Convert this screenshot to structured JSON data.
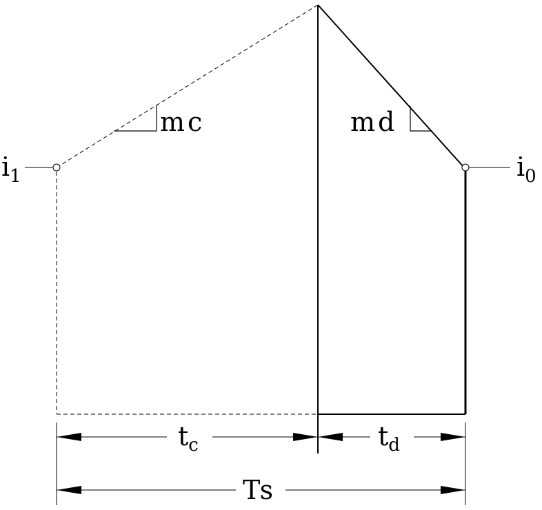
{
  "labels": {
    "i1_main": "i",
    "i1_sub": "1",
    "i0_main": "i",
    "i0_sub": "0",
    "mc": "mc",
    "md": "md",
    "tc_main": "t",
    "tc_sub": "c",
    "td_main": "t",
    "td_sub": "d",
    "ts": "Ts"
  }
}
